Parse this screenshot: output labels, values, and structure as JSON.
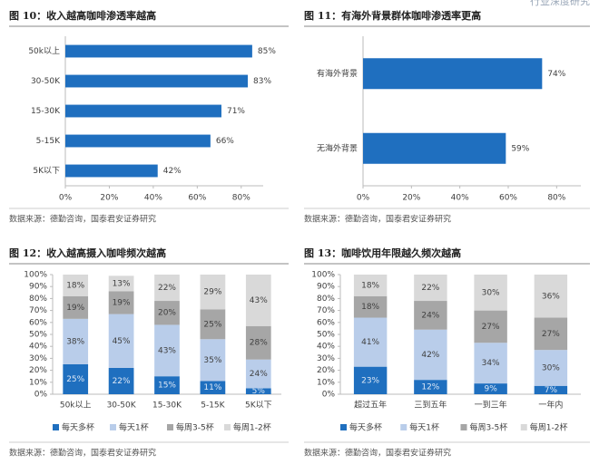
{
  "header": "行业深度研究",
  "chart_data": [
    {
      "type": "hbar",
      "title": "图 10：收入越高咖啡渗透率越高",
      "source": "数据来源：德勤咨询，国泰君安证券研究",
      "categories": [
        "50k以上",
        "30-50K",
        "15-30K",
        "5-15K",
        "5K以下"
      ],
      "values": [
        85,
        83,
        71,
        66,
        42
      ],
      "value_labels": [
        "85%",
        "83%",
        "71%",
        "66%",
        "42%"
      ],
      "color": "#1f6fbf",
      "xlim": [
        0,
        90
      ],
      "xticks": [
        {
          "value": 0,
          "label": "0%"
        },
        {
          "value": 20,
          "label": "20%"
        },
        {
          "value": 40,
          "label": "40%"
        },
        {
          "value": 60,
          "label": "60%"
        },
        {
          "value": 80,
          "label": "80%"
        }
      ]
    },
    {
      "type": "hbar",
      "title": "图 11：有海外背景群体咖啡渗透率更高",
      "source": "数据来源：德勤咨询，国泰君安证券研究",
      "categories": [
        "有海外背景",
        "无海外背景"
      ],
      "values": [
        74,
        59
      ],
      "value_labels": [
        "74%",
        "59%"
      ],
      "color": "#1f6fbf",
      "xlim": [
        0,
        90
      ],
      "xticks": [
        {
          "value": 0,
          "label": "0%"
        },
        {
          "value": 20,
          "label": "20%"
        },
        {
          "value": 40,
          "label": "40%"
        },
        {
          "value": 60,
          "label": "60%"
        },
        {
          "value": 80,
          "label": "80%"
        }
      ]
    },
    {
      "type": "stacked_bar",
      "title": "图 12：收入越高摄入咖啡频次越高",
      "source": "数据来源：德勤咨询，国泰君安证券研究",
      "categories": [
        "50k以上",
        "30-50K",
        "15-30K",
        "5-15K",
        "5K以下"
      ],
      "series": [
        {
          "name": "每天多杯",
          "color": "#1f6fbf",
          "values": [
            25,
            22,
            15,
            11,
            5
          ],
          "value_labels": [
            "25%",
            "22%",
            "15%",
            "11%",
            "5%"
          ]
        },
        {
          "name": "每天1杯",
          "color": "#b9cdea",
          "values": [
            38,
            45,
            43,
            35,
            24
          ],
          "value_labels": [
            "38%",
            "45%",
            "43%",
            "35%",
            "24%"
          ]
        },
        {
          "name": "每周3-5杯",
          "color": "#a6a6a6",
          "values": [
            19,
            19,
            20,
            25,
            28
          ],
          "value_labels": [
            "19%",
            "19%",
            "20%",
            "25%",
            "28%"
          ]
        },
        {
          "name": "每周1-2杯",
          "color": "#d9d9d9",
          "values": [
            18,
            13,
            22,
            29,
            43
          ],
          "value_labels": [
            "18%",
            "13%",
            "22%",
            "29%",
            "43%"
          ]
        }
      ],
      "ylim": [
        0,
        100
      ],
      "yticks": [
        {
          "value": 0,
          "label": "0%"
        },
        {
          "value": 10,
          "label": "10%"
        },
        {
          "value": 20,
          "label": "20%"
        },
        {
          "value": 30,
          "label": "30%"
        },
        {
          "value": 40,
          "label": "40%"
        },
        {
          "value": 50,
          "label": "50%"
        },
        {
          "value": 60,
          "label": "60%"
        },
        {
          "value": 70,
          "label": "70%"
        },
        {
          "value": 80,
          "label": "80%"
        },
        {
          "value": 90,
          "label": "90%"
        },
        {
          "value": 100,
          "label": "100%"
        }
      ]
    },
    {
      "type": "stacked_bar",
      "title": "图 13：咖啡饮用年限越久频次越高",
      "source": "数据来源：德勤咨询，国泰君安证券研究",
      "categories": [
        "超过五年",
        "三到五年",
        "一到三年",
        "一年内"
      ],
      "series": [
        {
          "name": "每天多杯",
          "color": "#1f6fbf",
          "values": [
            23,
            12,
            9,
            7
          ],
          "value_labels": [
            "23%",
            "12%",
            "9%",
            "7%"
          ]
        },
        {
          "name": "每天1杯",
          "color": "#b9cdea",
          "values": [
            41,
            42,
            34,
            30
          ],
          "value_labels": [
            "41%",
            "42%",
            "34%",
            "30%"
          ]
        },
        {
          "name": "每周3-5杯",
          "color": "#a6a6a6",
          "values": [
            18,
            24,
            27,
            27
          ],
          "value_labels": [
            "18%",
            "24%",
            "27%",
            "27%"
          ]
        },
        {
          "name": "每周1-2杯",
          "color": "#d9d9d9",
          "values": [
            18,
            22,
            30,
            36
          ],
          "value_labels": [
            "18%",
            "22%",
            "30%",
            "36%"
          ]
        }
      ],
      "ylim": [
        0,
        100
      ],
      "yticks": [
        {
          "value": 0,
          "label": "0%"
        },
        {
          "value": 10,
          "label": "10%"
        },
        {
          "value": 20,
          "label": "20%"
        },
        {
          "value": 30,
          "label": "30%"
        },
        {
          "value": 40,
          "label": "40%"
        },
        {
          "value": 50,
          "label": "50%"
        },
        {
          "value": 60,
          "label": "60%"
        },
        {
          "value": 70,
          "label": "70%"
        },
        {
          "value": 80,
          "label": "80%"
        },
        {
          "value": 90,
          "label": "90%"
        },
        {
          "value": 100,
          "label": "100%"
        }
      ]
    }
  ]
}
